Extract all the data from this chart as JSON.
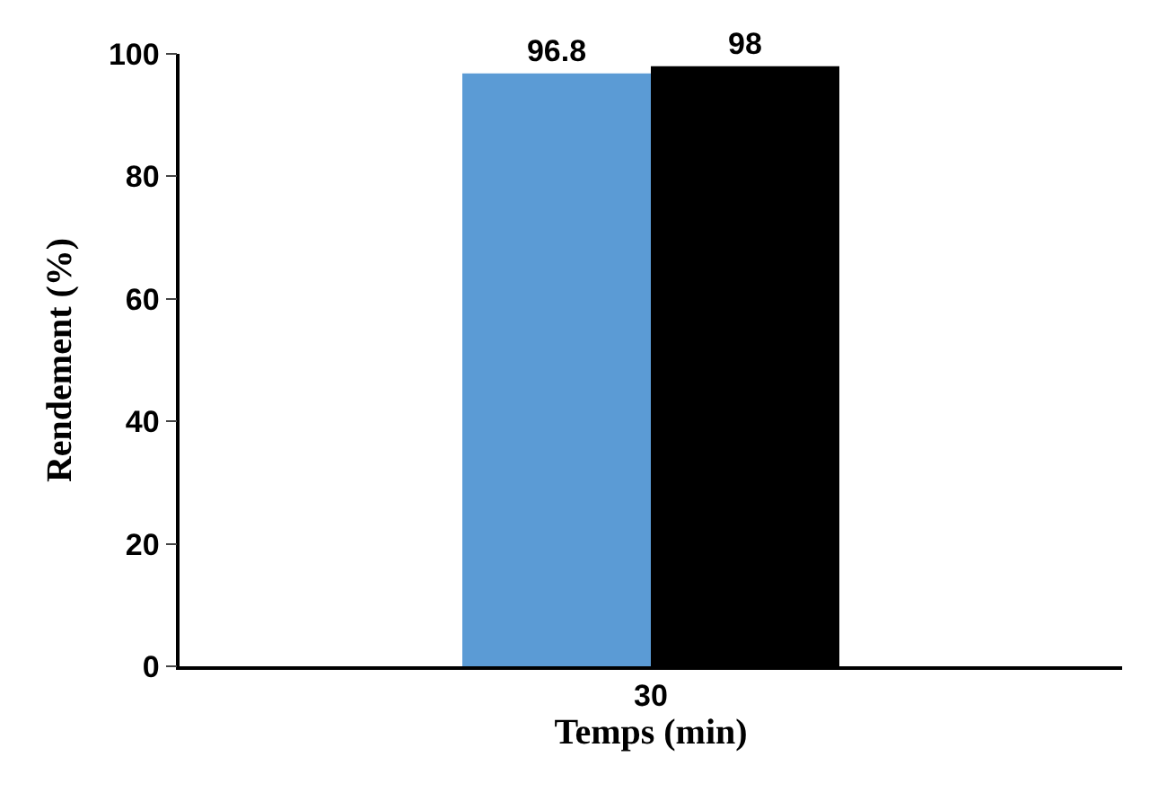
{
  "chart_data": {
    "type": "bar",
    "xlabel": "Temps (min)",
    "ylabel": "Rendement (%)",
    "categories": [
      "30"
    ],
    "series": [
      {
        "color": "#5b9bd5",
        "values": [
          96.8
        ]
      },
      {
        "color": "#000000",
        "values": [
          98
        ]
      }
    ],
    "ylim": [
      0,
      100
    ],
    "yticks": [
      0,
      20,
      40,
      60,
      80,
      100
    ],
    "legend": false,
    "data_labels": true
  }
}
